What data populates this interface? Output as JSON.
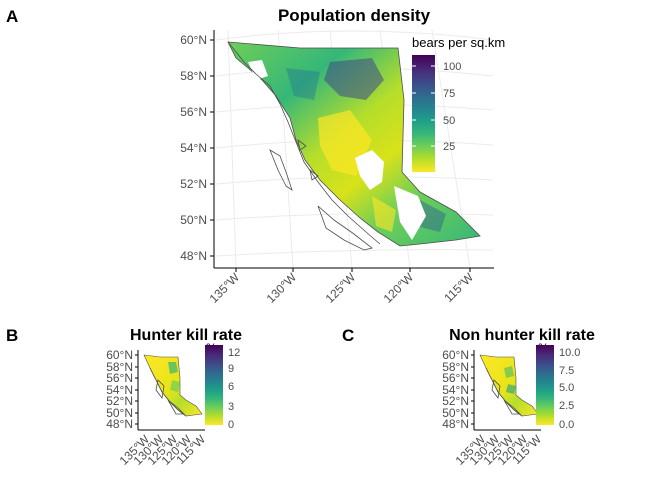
{
  "colors": {
    "viridis": [
      "#fde725",
      "#b5de2b",
      "#6ece58",
      "#35b779",
      "#1f9e89",
      "#26828e",
      "#31688e",
      "#3e4989",
      "#482878",
      "#440154"
    ],
    "coastline": "#4d4d4d",
    "graticule": "#ebebeb"
  },
  "panels": [
    {
      "letter": "A",
      "title": "Population density",
      "legend": {
        "title": "bears per sq.km",
        "ticks": [
          "100",
          "75",
          "50",
          "25"
        ],
        "range": [
          0,
          110
        ]
      },
      "lat_ticks": [
        "60°N",
        "58°N",
        "56°N",
        "54°N",
        "52°N",
        "50°N",
        "48°N"
      ],
      "lon_ticks": [
        "135°W",
        "130°W",
        "125°W",
        "120°W",
        "115°W"
      ]
    },
    {
      "letter": "B",
      "title": "Hunter kill rate",
      "legend": {
        "title": "%",
        "ticks": [
          "12",
          "9",
          "6",
          "3",
          "0"
        ],
        "range": [
          0,
          12
        ]
      },
      "lat_ticks": [
        "60°N",
        "58°N",
        "56°N",
        "54°N",
        "52°N",
        "50°N",
        "48°N"
      ],
      "lon_ticks": [
        "135°W",
        "130°W",
        "125°W",
        "120°W",
        "115°W"
      ]
    },
    {
      "letter": "C",
      "title": "Non hunter kill rate",
      "legend": {
        "title": "%",
        "ticks": [
          "10.0",
          "7.5",
          "5.0",
          "2.5",
          "0.0"
        ],
        "range": [
          0,
          10
        ]
      },
      "lat_ticks": [
        "60°N",
        "58°N",
        "56°N",
        "54°N",
        "52°N",
        "50°N",
        "48°N"
      ],
      "lon_ticks": [
        "135°W",
        "130°W",
        "125°W",
        "120°W",
        "115°W"
      ]
    }
  ]
}
